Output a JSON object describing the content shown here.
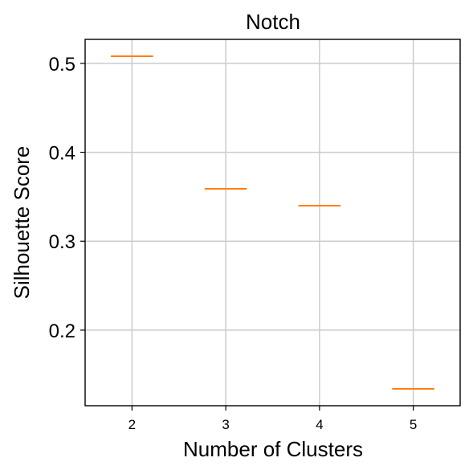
{
  "chart_data": {
    "type": "box",
    "title": "Notch",
    "xlabel": "Number of Clusters",
    "ylabel": "Silhouette Score",
    "categories": [
      "2",
      "3",
      "4",
      "5"
    ],
    "values": [
      0.508,
      0.359,
      0.34,
      0.134
    ],
    "ylim": [
      0.115,
      0.527
    ],
    "yticks": [
      "0.2",
      "0.3",
      "0.4",
      "0.5"
    ],
    "grid": true,
    "median_color": "#ff7f0e"
  }
}
